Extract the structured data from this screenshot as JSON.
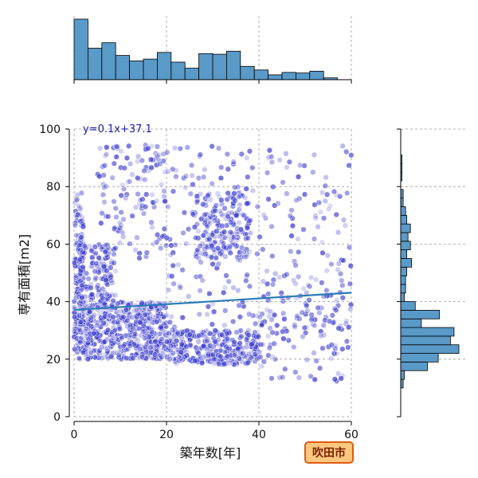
{
  "chart_data": {
    "type": "scatter",
    "xlabel": "築年数[年]",
    "ylabel": "専有面積[m2]",
    "xlim": [
      0,
      60
    ],
    "ylim": [
      0,
      100
    ],
    "x_ticks": [
      "0",
      "20",
      "40",
      "60"
    ],
    "y_ticks": [
      "0",
      "20",
      "40",
      "60",
      "80",
      "100"
    ],
    "regression": {
      "label": "y=0.1x+37.1",
      "slope": 0.1,
      "intercept": 37.1
    },
    "badge": "吹田市",
    "grid": true,
    "colors": {
      "points": "#3a3ad0",
      "hist": "#5a9ac8",
      "line": "#2a7ab8",
      "badge_fill": "#ffc880",
      "badge_border": "#e05a10"
    },
    "scatter_clusters": [
      {
        "x": [
          0,
          2
        ],
        "y": [
          22,
          78
        ],
        "n": 140
      },
      {
        "x": [
          1,
          20
        ],
        "y": [
          20,
          40
        ],
        "n": 500
      },
      {
        "x": [
          1,
          9
        ],
        "y": [
          40,
          60
        ],
        "n": 130
      },
      {
        "x": [
          5,
          20
        ],
        "y": [
          55,
          95
        ],
        "n": 120
      },
      {
        "x": [
          20,
          40
        ],
        "y": [
          18,
          30
        ],
        "n": 300
      },
      {
        "x": [
          26,
          38
        ],
        "y": [
          55,
          78
        ],
        "n": 170
      },
      {
        "x": [
          20,
          60
        ],
        "y": [
          30,
          95
        ],
        "n": 260
      },
      {
        "x": [
          40,
          60
        ],
        "y": [
          12,
          50
        ],
        "n": 110
      }
    ],
    "x_hist": {
      "bins": [
        0,
        3,
        6,
        9,
        12,
        15,
        18,
        21,
        24,
        27,
        30,
        33,
        36,
        39,
        42,
        45,
        48,
        51,
        54,
        57,
        60
      ],
      "counts": [
        100,
        52,
        61,
        40,
        31,
        34,
        45,
        29,
        19,
        43,
        42,
        47,
        22,
        16,
        8,
        12,
        11,
        14,
        3,
        0
      ]
    },
    "y_hist": {
      "bins": [
        10,
        13,
        16,
        19,
        22,
        25,
        28,
        31,
        34,
        37,
        40,
        43,
        46,
        49,
        52,
        55,
        58,
        61,
        64,
        67,
        70,
        73,
        76,
        79,
        82,
        85,
        88,
        91,
        94,
        97,
        100
      ],
      "counts": [
        2,
        3,
        22,
        31,
        48,
        41,
        44,
        17,
        32,
        12,
        3,
        4,
        4,
        5,
        9,
        5,
        8,
        6,
        8,
        5,
        4,
        2,
        2,
        0,
        1,
        1,
        1,
        0,
        0,
        0
      ]
    }
  }
}
